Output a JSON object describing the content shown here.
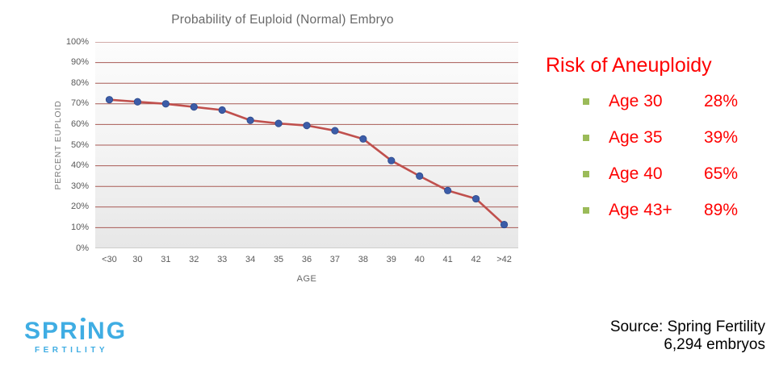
{
  "chart": {
    "title": "Probability of Euploid (Normal) Embryo",
    "y_axis_title": "PERCENT EUPLOID",
    "x_axis_title": "AGE"
  },
  "chart_data": {
    "type": "line",
    "title": "Probability of Euploid (Normal) Embryo",
    "xlabel": "AGE",
    "ylabel": "PERCENT EUPLOID",
    "categories": [
      "<30",
      "30",
      "31",
      "32",
      "33",
      "34",
      "35",
      "36",
      "37",
      "38",
      "39",
      "40",
      "41",
      "42",
      ">42"
    ],
    "values": [
      72,
      71,
      70,
      68.5,
      67,
      62,
      60.5,
      59.5,
      57,
      53,
      42.5,
      35,
      28,
      24,
      11.5
    ],
    "ylim": [
      0,
      100
    ],
    "ytick_labels": [
      "100%",
      "90%",
      "80%",
      "70%",
      "60%",
      "50%",
      "40%",
      "30%",
      "20%",
      "10%",
      "0%"
    ],
    "grid": true,
    "legend": false,
    "line_color": "#c0504d",
    "marker_color": "#3c5ca8",
    "marker_edge_color": "#2d4a8a",
    "gridline_color": "#a85a55"
  },
  "risk_panel": {
    "title": "Risk of Aneuploidy",
    "text_color": "#fe0000",
    "bullet_color": "#9bbb59",
    "items": [
      {
        "label": "Age 30",
        "value": "28%"
      },
      {
        "label": "Age 35",
        "value": "39%"
      },
      {
        "label": "Age 40",
        "value": "65%"
      },
      {
        "label": "Age 43+",
        "value": "89%"
      }
    ]
  },
  "logo": {
    "primary": "SPRING",
    "secondary": "FERTILITY",
    "color": "#3fade3"
  },
  "source": {
    "line1": "Source: Spring Fertility",
    "line2": "6,294 embryos"
  }
}
